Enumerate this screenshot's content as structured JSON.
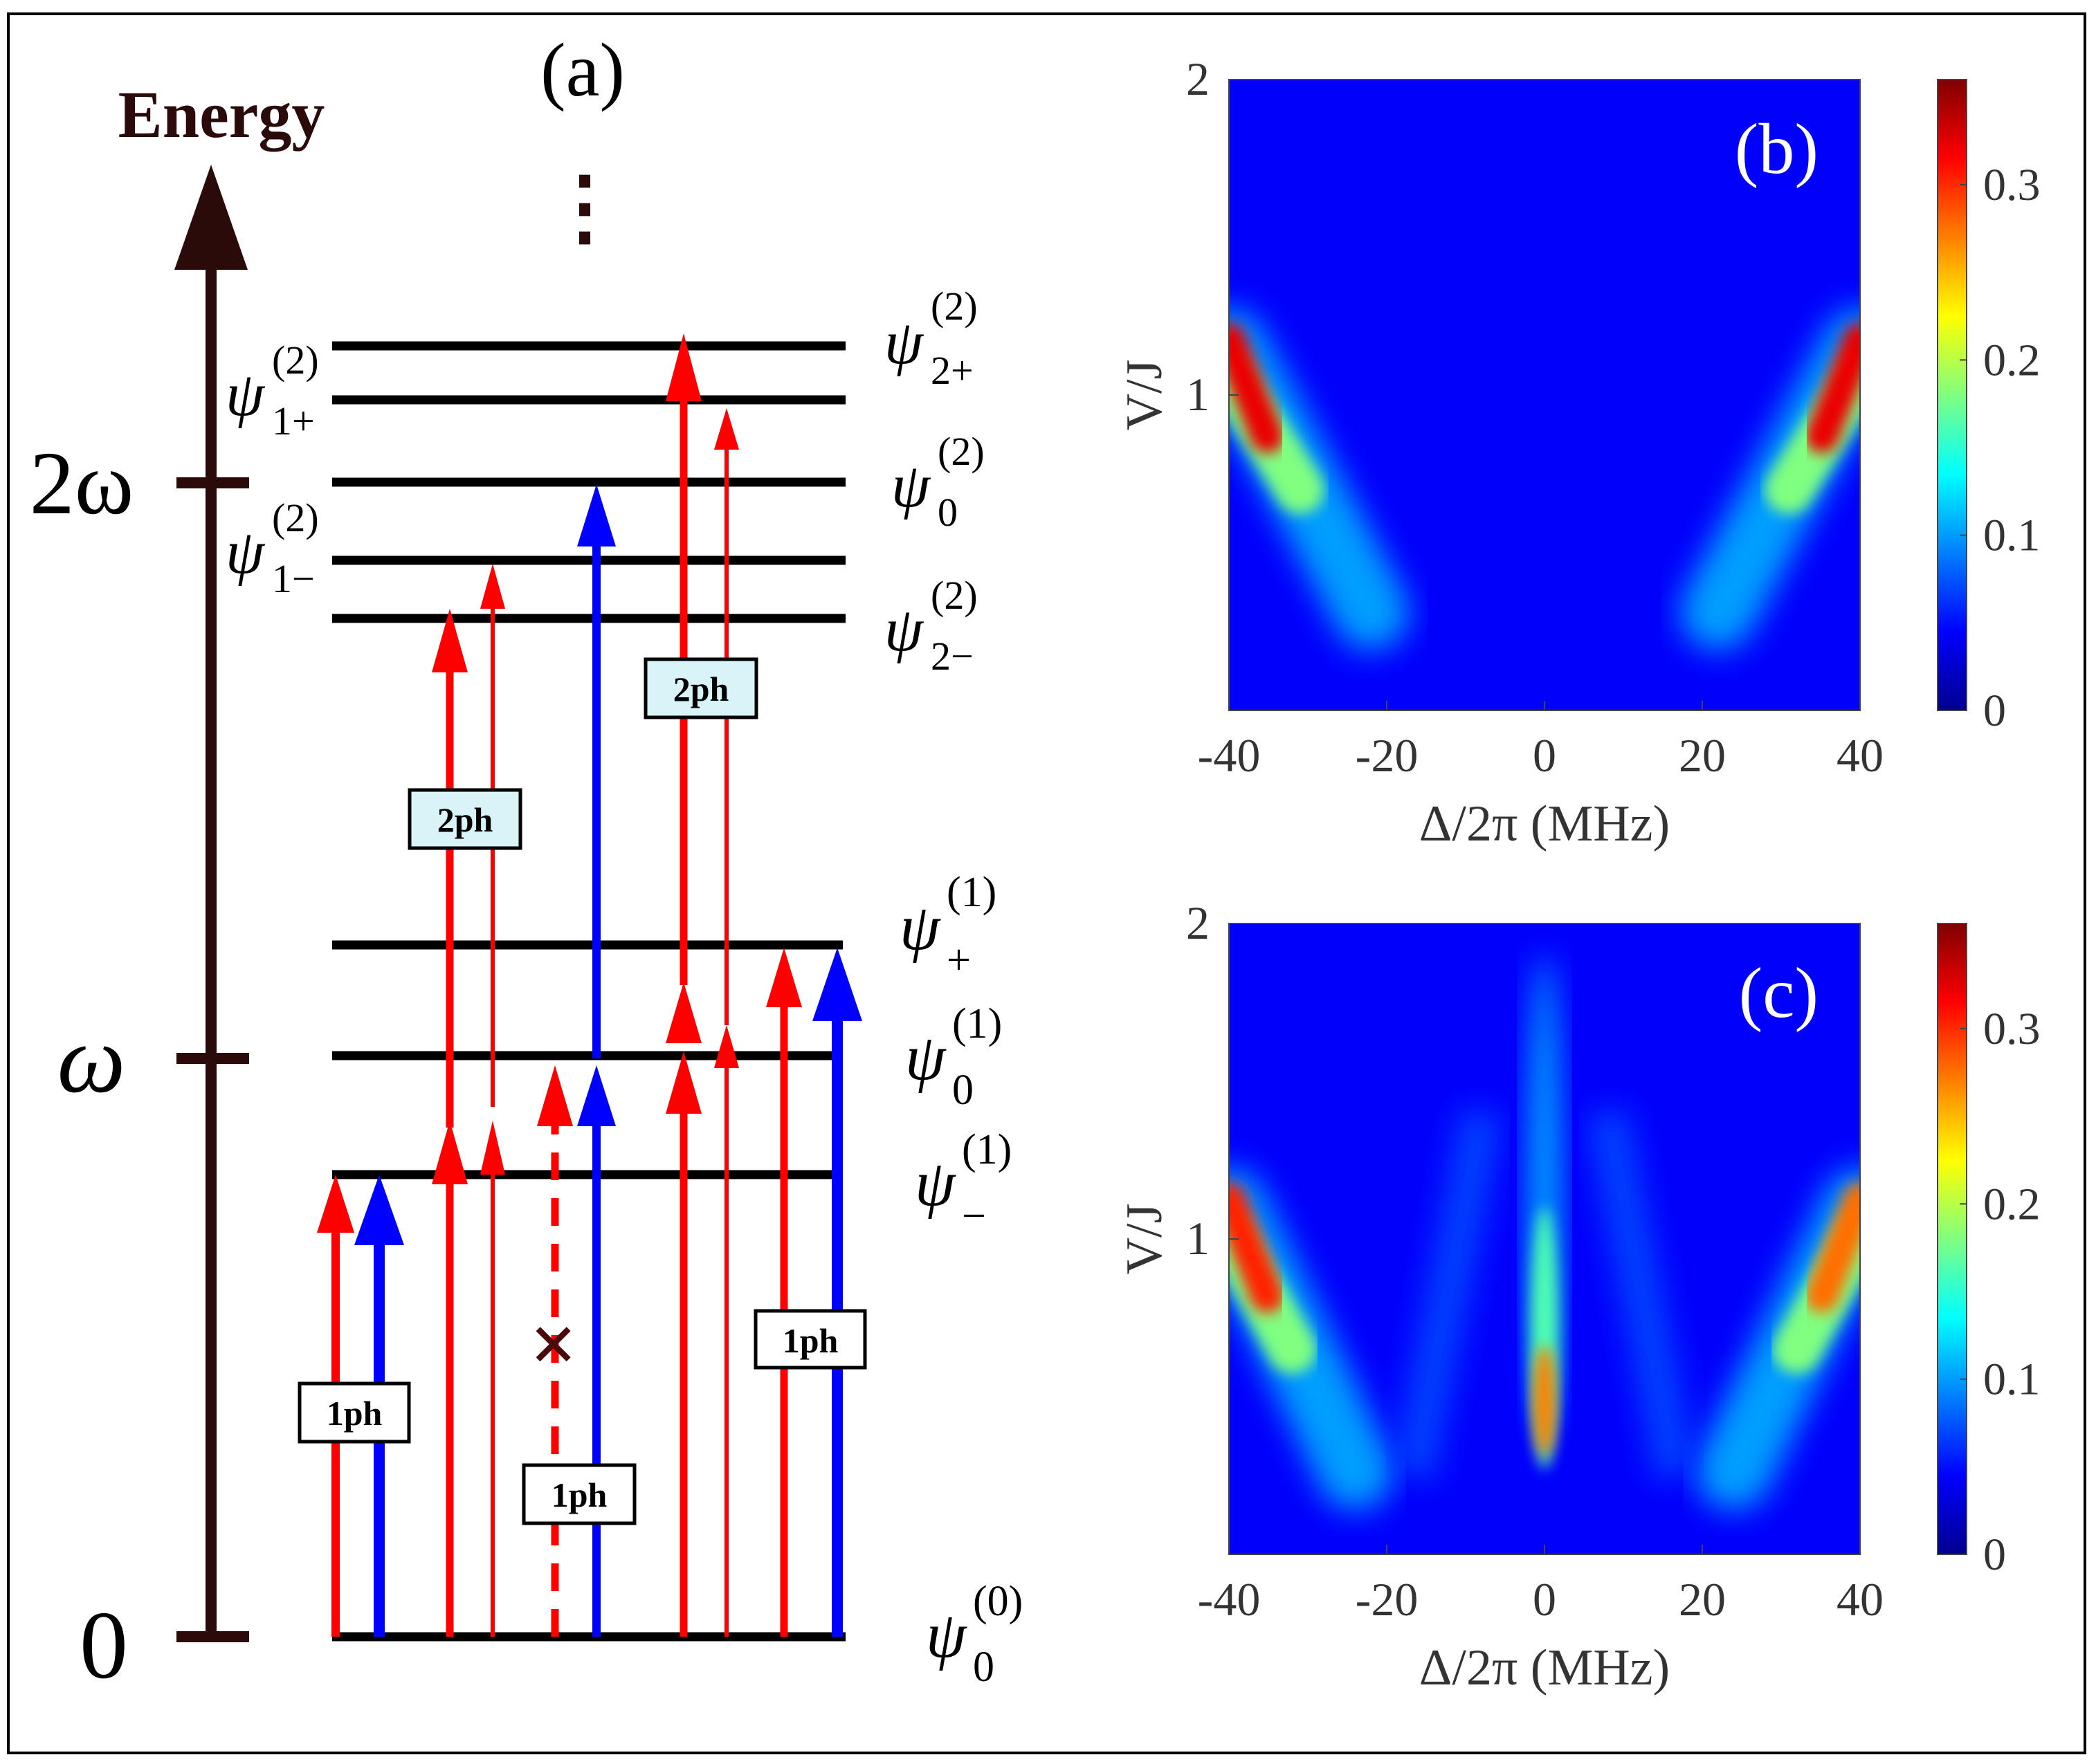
{
  "panel_a": {
    "label": "(a)",
    "axis_label": "Energy",
    "ellipsis": "⋮",
    "energy_ticks": [
      "0",
      "ω",
      "2ω"
    ],
    "states": {
      "g": {
        "base": "ψ",
        "sub": "0",
        "sup": "(0)"
      },
      "m": {
        "base": "ψ",
        "sub": "−",
        "sup": "(1)"
      },
      "z1": {
        "base": "ψ",
        "sub": "0",
        "sup": "(1)"
      },
      "p": {
        "base": "ψ",
        "sub": "+",
        "sup": "(1)"
      },
      "d2m": {
        "base": "ψ",
        "sub": "2−",
        "sup": "(2)"
      },
      "d1m": {
        "base": "ψ",
        "sub": "1−",
        "sup": "(2)"
      },
      "z2": {
        "base": "ψ",
        "sub": "0",
        "sup": "(2)"
      },
      "d1p": {
        "base": "ψ",
        "sub": "1+",
        "sup": "(2)"
      },
      "d2p": {
        "base": "ψ",
        "sub": "2+",
        "sup": "(2)"
      }
    },
    "boxes": [
      "1ph",
      "1ph",
      "1ph",
      "2ph",
      "2ph"
    ],
    "forbidden_mark": "×",
    "colors": {
      "red": "#ff0000",
      "blue": "#0000ff",
      "axis": "#2b0a0a",
      "box_fill": "#d8f4f8"
    }
  },
  "chart_data": [
    {
      "type": "heatmap",
      "panel": "(b)",
      "xlabel": "Δ/2π (MHz)",
      "ylabel": "V/J",
      "xlim": [
        -40,
        40
      ],
      "ylim": [
        0,
        2
      ],
      "xticks": [
        "-40",
        "-20",
        "0",
        "20",
        "40"
      ],
      "yticks": [
        "1",
        "2"
      ],
      "colorbar": {
        "range": [
          0,
          0.36
        ],
        "ticks": [
          "0",
          "0.1",
          "0.2",
          "0.3"
        ]
      },
      "features": [
        {
          "name": "left-branch",
          "peak": 0.35,
          "at": {
            "delta": -40,
            "V_over_J": 1.0
          },
          "fades_to": {
            "delta": -22,
            "V_over_J": 0.4
          }
        },
        {
          "name": "right-branch",
          "peak": 0.35,
          "at": {
            "delta": 40,
            "V_over_J": 1.0
          },
          "fades_to": {
            "delta": 22,
            "V_over_J": 0.4
          }
        }
      ]
    },
    {
      "type": "heatmap",
      "panel": "(c)",
      "xlabel": "Δ/2π (MHz)",
      "ylabel": "V/J",
      "xlim": [
        -40,
        40
      ],
      "ylim": [
        0,
        2
      ],
      "xticks": [
        "-40",
        "-20",
        "0",
        "20",
        "40"
      ],
      "yticks": [
        "1",
        "2"
      ],
      "colorbar": {
        "range": [
          0,
          0.36
        ],
        "ticks": [
          "0",
          "0.1",
          "0.2",
          "0.3"
        ]
      },
      "features": [
        {
          "name": "left-branch",
          "peak": 0.33,
          "at": {
            "delta": -40,
            "V_over_J": 0.95
          }
        },
        {
          "name": "right-branch",
          "peak": 0.3,
          "at": {
            "delta": 40,
            "V_over_J": 0.95
          }
        },
        {
          "name": "central-peak",
          "peak": 0.33,
          "at": {
            "delta": 0,
            "V_over_J": 0.4
          },
          "extends_to": {
            "V_over_J": 1.9
          }
        }
      ]
    }
  ]
}
